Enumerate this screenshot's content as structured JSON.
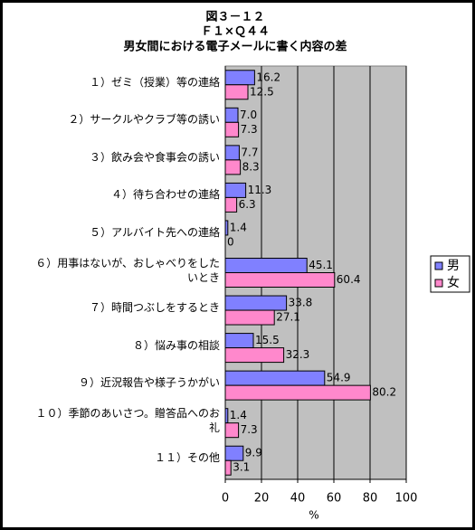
{
  "chart_data": {
    "type": "barh",
    "title": "図３－１２",
    "subtitle": "Ｆ１×Ｑ４４",
    "subtitle2": "男女間における電子メールに書く内容の差",
    "categories": [
      "１）ゼミ（授業）等の連絡",
      "２）サークルやクラブ等の誘い",
      "３）飲み会や食事会の誘い",
      "４）待ち合わせの連絡",
      "５）アルバイト先への連絡",
      "６）用事はないが、おしゃべりをしたいとき",
      "７）時間つぶしをするとき",
      "８）悩み事の相談",
      "９）近況報告や様子うかがい",
      "１０）季節のあいさつ。贈答品へのお礼",
      "１１）その他"
    ],
    "series": [
      {
        "name": "男",
        "color": "#8080ff",
        "values": [
          16.2,
          7.0,
          7.7,
          11.3,
          1.4,
          45.1,
          33.8,
          15.5,
          54.9,
          1.4,
          9.9
        ],
        "value_labels": [
          "16.2",
          "7.0",
          "7.7",
          "11.3",
          "1.4",
          "45.1",
          "33.8",
          "15.5",
          "54.9",
          "1.4",
          "9.9"
        ]
      },
      {
        "name": "女",
        "color": "#ff88cc",
        "values": [
          12.5,
          7.3,
          8.3,
          6.3,
          0,
          60.4,
          27.1,
          32.3,
          80.2,
          7.3,
          3.1
        ],
        "value_labels": [
          "12.5",
          "7.3",
          "8.3",
          "6.3",
          "0",
          "60.4",
          "27.1",
          "32.3",
          "80.2",
          "7.3",
          "3.1"
        ]
      }
    ],
    "xlim": [
      0,
      100
    ],
    "xticks": [
      0,
      20,
      40,
      60,
      80,
      100
    ],
    "xlabel": "%",
    "grid": true,
    "legend": "right"
  }
}
